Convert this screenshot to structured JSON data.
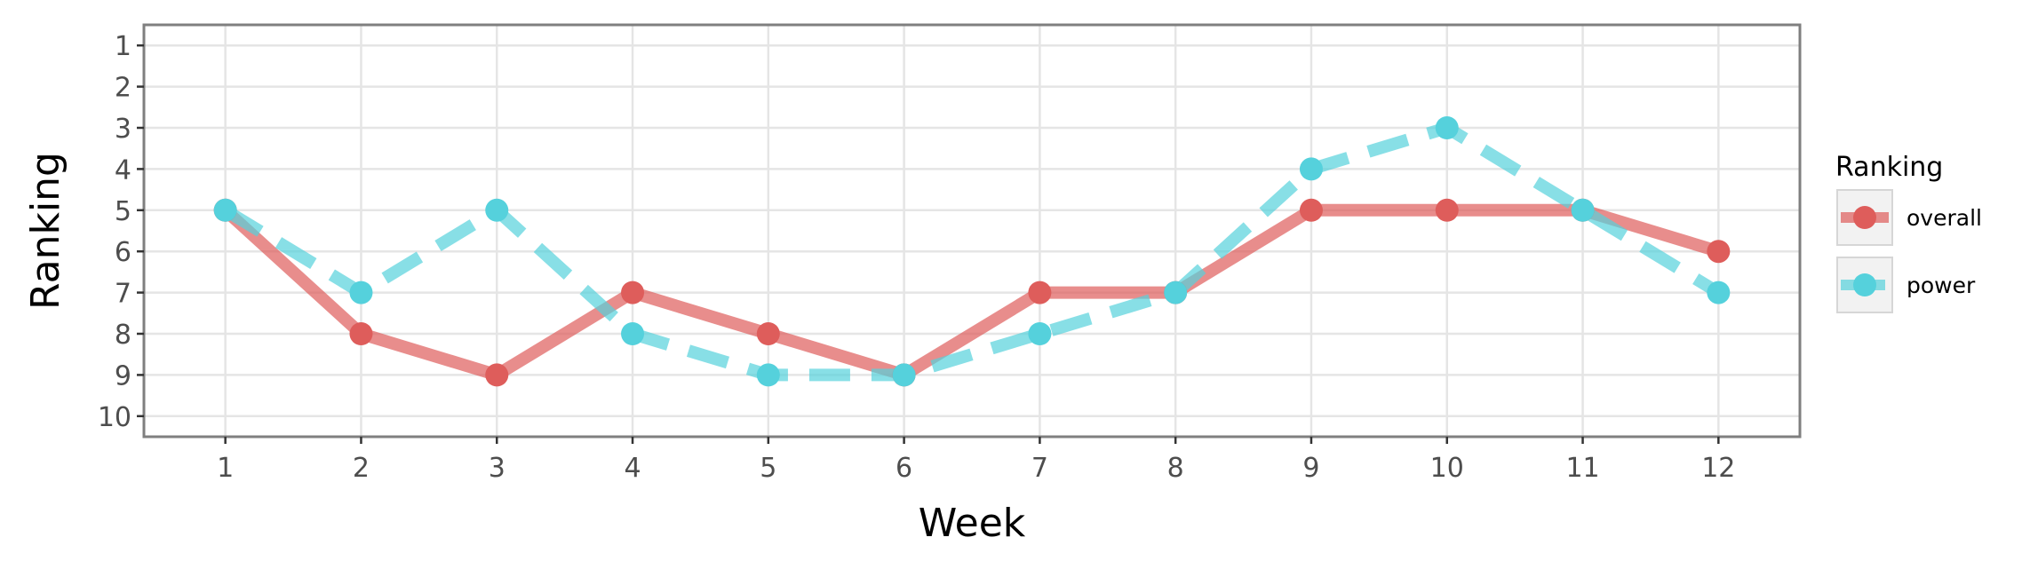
{
  "chart_data": {
    "type": "line",
    "title": "",
    "xlabel": "Week",
    "ylabel": "Ranking",
    "x": [
      1,
      2,
      3,
      4,
      5,
      6,
      7,
      8,
      9,
      10,
      11,
      12
    ],
    "x_tick_labels": [
      "1",
      "2",
      "3",
      "4",
      "5",
      "6",
      "7",
      "8",
      "9",
      "10",
      "11",
      "12"
    ],
    "y_tick_labels": [
      "1",
      "2",
      "3",
      "4",
      "5",
      "6",
      "7",
      "8",
      "9",
      "10"
    ],
    "xlim": [
      0.4,
      12.6
    ],
    "ylim": [
      0.5,
      10.5
    ],
    "y_reversed": true,
    "grid": true,
    "legend": {
      "title": "Ranking",
      "position": "right"
    },
    "series": [
      {
        "name": "overall",
        "values": [
          5,
          8,
          9,
          7,
          8,
          9,
          7,
          7,
          5,
          5,
          5,
          6
        ],
        "color": "#de5d5b",
        "line_style": "solid"
      },
      {
        "name": "power",
        "values": [
          5,
          7,
          5,
          8,
          9,
          9,
          8,
          7,
          4,
          3,
          5,
          7
        ],
        "color": "#55d1dc",
        "line_style": "dashed"
      }
    ]
  }
}
